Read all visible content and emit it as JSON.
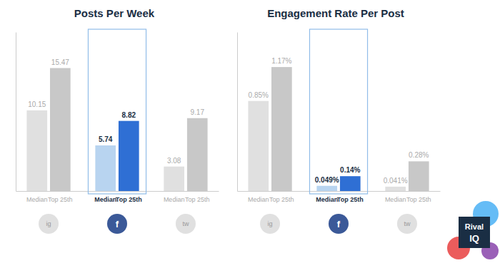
{
  "chart_data": [
    {
      "type": "bar",
      "title": "Posts Per Week",
      "categories": [
        "ig",
        "f",
        "tw"
      ],
      "colors": [
        "#e0e0e0",
        "#3b5998",
        "#e0e0e0"
      ],
      "series": [
        {
          "name": "Median",
          "colors": [
            "#e0e0e0",
            "#b8d4f0",
            "#e0e0e0"
          ],
          "values": [
            10.15,
            5.74,
            3.08
          ]
        },
        {
          "name": "Top 25th",
          "colors": [
            "#c8c8c8",
            "#2f6fd4",
            "#c8c8c8"
          ],
          "values": [
            15.47,
            8.82,
            9.17
          ]
        }
      ],
      "ylim": [
        0,
        20
      ],
      "tick_labels": false,
      "data_labels": true
    },
    {
      "type": "bar",
      "title": "Engagement Rate Per Post",
      "categories": [
        "ig",
        "f",
        "tw"
      ],
      "colors": [
        "#e0e0e0",
        "#3b5998",
        "#e0e0e0"
      ],
      "series": [
        {
          "name": "Median",
          "colors": [
            "#e0e0e0",
            "#b8d4f0",
            "#e0e0e0"
          ],
          "values": [
            0.85,
            0.049,
            0.041
          ],
          "value_labels": [
            "0.85%",
            "0.049%",
            "0.041%"
          ]
        },
        {
          "name": "Top 25th",
          "colors": [
            "#c8c8c8",
            "#2f6fd4",
            "#c8c8c8"
          ],
          "values": [
            1.17,
            0.14,
            0.28
          ],
          "value_labels": [
            "1.17%",
            "0.14%",
            "0.28%"
          ]
        }
      ],
      "ylim": [
        0,
        1.5
      ],
      "tick_labels": false,
      "data_labels": true,
      "annotations": [
        "Rival",
        "IQ"
      ]
    }
  ]
}
